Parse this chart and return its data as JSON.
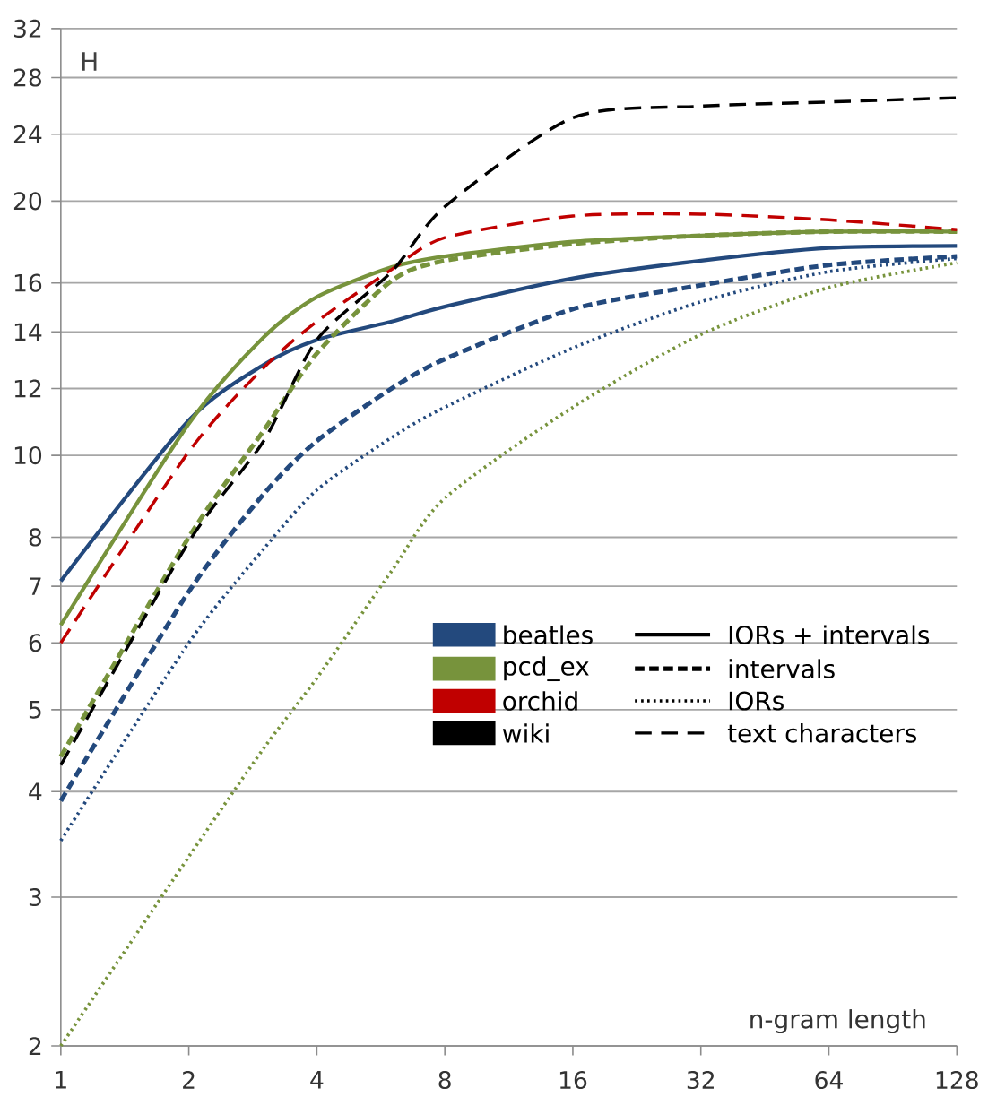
{
  "chart_data": {
    "type": "line",
    "xlabel": "n-gram length",
    "ylabel": "H",
    "log": "xy",
    "grid": "y",
    "xlim": [
      1,
      128
    ],
    "xticks": [
      1,
      2,
      4,
      8,
      16,
      32,
      64,
      128
    ],
    "ylim": [
      2,
      32
    ],
    "yticks": [
      2,
      3,
      4,
      5,
      6,
      7,
      8,
      10,
      12,
      14,
      16,
      20,
      24,
      28,
      32
    ],
    "x": [
      1,
      2,
      3,
      4,
      6,
      8,
      16,
      32,
      64,
      128
    ],
    "series": [
      {
        "color": "#23497d",
        "line_style": "solid",
        "values": [
          7.1,
          11.0,
          12.8,
          13.7,
          14.4,
          15.0,
          16.2,
          17.0,
          17.6,
          17.7
        ]
      },
      {
        "color": "#23497d",
        "line_style": "dashed",
        "values": [
          3.9,
          6.9,
          9.0,
          10.4,
          12.0,
          13.0,
          14.9,
          15.9,
          16.8,
          17.2
        ]
      },
      {
        "color": "#23497d",
        "line_style": "dotted",
        "values": [
          3.5,
          6.0,
          7.75,
          9.1,
          10.5,
          11.4,
          13.4,
          15.2,
          16.5,
          17.1
        ]
      },
      {
        "color": "#77933c",
        "line_style": "solid",
        "values": [
          6.3,
          10.9,
          13.8,
          15.4,
          16.7,
          17.2,
          17.9,
          18.2,
          18.4,
          18.4
        ]
      },
      {
        "color": "#77933c",
        "line_style": "dashed",
        "values": [
          4.4,
          8.0,
          10.7,
          13.2,
          16.1,
          17.0,
          17.8,
          18.2,
          18.4,
          18.4
        ]
      },
      {
        "color": "#77933c",
        "line_style": "dotted",
        "values": [
          2.0,
          3.35,
          4.5,
          5.45,
          7.3,
          8.9,
          11.4,
          13.9,
          15.8,
          16.9
        ]
      },
      {
        "color": "#c00000",
        "line_style": "long dashed",
        "values": [
          6.0,
          10.1,
          12.7,
          14.4,
          16.6,
          18.1,
          19.2,
          19.3,
          19.0,
          18.5
        ]
      },
      {
        "color": "#000000",
        "line_style": "long dashed",
        "values": [
          4.3,
          7.9,
          10.4,
          13.7,
          16.5,
          19.7,
          25.1,
          25.9,
          26.2,
          26.5
        ]
      }
    ],
    "annotations": [
      "beatles",
      "pcd_ex",
      "orchid",
      "wiki",
      "IORs + intervals",
      "intervals",
      "IORs",
      "text characters"
    ]
  }
}
